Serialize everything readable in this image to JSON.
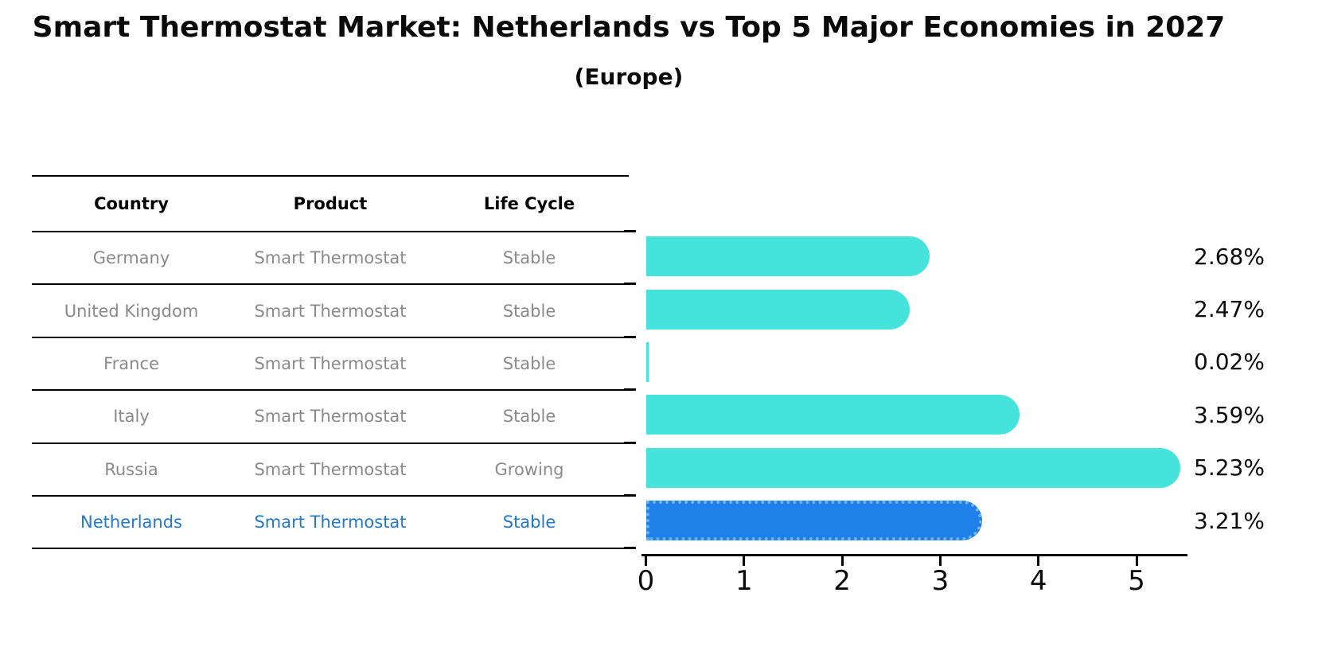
{
  "title": "Smart Thermostat Market: Netherlands vs Top 5 Major Economies in 2027",
  "subtitle": "(Europe)",
  "colors": {
    "bar_default": "#45E3DC",
    "bar_highlight": "#1E80E8",
    "bar_highlight_edge": "#6FB2F4",
    "highlight_text": "#2478C8",
    "row_text": "#8A8A8A",
    "header_text": "#000000",
    "axis": "#000000"
  },
  "table": {
    "headers": [
      "Country",
      "Product",
      "Life Cycle"
    ],
    "rows": [
      {
        "country": "Germany",
        "product": "Smart Thermostat",
        "life_cycle": "Stable",
        "value_label": "2.68%",
        "highlight": false
      },
      {
        "country": "United Kingdom",
        "product": "Smart Thermostat",
        "life_cycle": "Stable",
        "value_label": "2.47%",
        "highlight": false
      },
      {
        "country": "France",
        "product": "Smart Thermostat",
        "life_cycle": "Stable",
        "value_label": "0.02%",
        "highlight": false
      },
      {
        "country": "Italy",
        "product": "Smart Thermostat",
        "life_cycle": "Stable",
        "value_label": "3.59%",
        "highlight": false
      },
      {
        "country": "Russia",
        "product": "Smart Thermostat",
        "life_cycle": "Growing",
        "value_label": "5.23%",
        "highlight": false
      },
      {
        "country": "Netherlands",
        "product": "Smart Thermostat",
        "life_cycle": "Stable",
        "value_label": "3.21%",
        "highlight": true
      }
    ]
  },
  "chart_data": {
    "type": "bar",
    "orientation": "horizontal",
    "title": "Smart Thermostat Market: Netherlands vs Top 5 Major Economies in 2027 (Europe)",
    "categories": [
      "Germany",
      "United Kingdom",
      "France",
      "Italy",
      "Russia",
      "Netherlands"
    ],
    "values": [
      2.68,
      2.47,
      0.02,
      3.59,
      5.23,
      3.21
    ],
    "value_labels": [
      "2.68%",
      "2.47%",
      "0.02%",
      "3.59%",
      "5.23%",
      "3.21%"
    ],
    "unit": "%",
    "highlight_category": "Netherlands",
    "xticks": [
      0,
      1,
      2,
      3,
      4,
      5
    ],
    "xlim": [
      0,
      5.5
    ],
    "grid": false,
    "legend": false
  }
}
